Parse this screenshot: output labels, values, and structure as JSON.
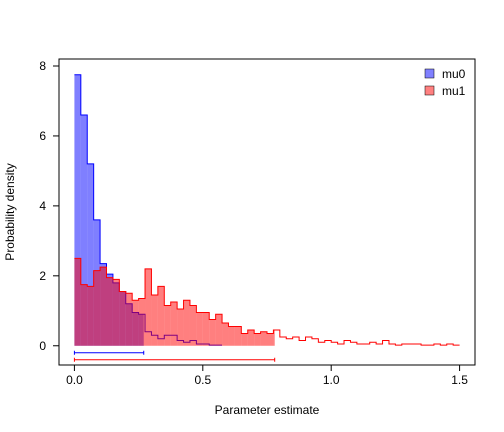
{
  "chart_data": {
    "type": "area",
    "title": "",
    "xlabel": "Parameter estimate",
    "ylabel": "Probability density",
    "xlim": [
      -0.06,
      1.56
    ],
    "ylim": [
      -0.55,
      8.2
    ],
    "x_ticks": [
      0.0,
      0.5,
      1.0,
      1.5
    ],
    "x_tick_labels": [
      "0.0",
      "0.5",
      "1.0",
      "1.5"
    ],
    "y_ticks": [
      0,
      2,
      4,
      6,
      8
    ],
    "y_tick_labels": [
      "0",
      "2",
      "4",
      "6",
      "8"
    ],
    "legend_position": "top-right",
    "legend": [
      {
        "label": "mu0",
        "color": "#8080ff"
      },
      {
        "label": "mu1",
        "color": "#ff8080"
      }
    ],
    "series": [
      {
        "name": "mu0",
        "fill": "#0000ff",
        "fill_opacity": 0.5,
        "stroke": "#0000ff",
        "bin_width": 0.025,
        "x_start": 0.0,
        "densities": [
          7.75,
          6.6,
          5.2,
          3.6,
          2.35,
          2.05,
          1.8,
          1.55,
          1.2,
          0.95,
          0.9,
          0.4,
          0.3,
          0.2,
          0.3,
          0.3,
          0.15,
          0.1,
          0.15,
          0.05,
          0.05,
          0.02,
          0.02
        ],
        "shaded_until": 0.27
      },
      {
        "name": "mu1",
        "fill": "#ff0000",
        "fill_opacity": 0.5,
        "stroke": "#ff0000",
        "bin_width": 0.025,
        "x_start": 0.0,
        "densities": [
          2.5,
          1.75,
          1.7,
          2.15,
          2.25,
          1.95,
          1.9,
          1.55,
          1.5,
          1.3,
          1.35,
          2.2,
          1.45,
          1.7,
          1.15,
          1.25,
          1.05,
          1.3,
          1.15,
          0.95,
          0.95,
          0.75,
          0.9,
          0.65,
          0.55,
          0.55,
          0.35,
          0.45,
          0.35,
          0.4,
          0.35,
          0.45,
          0.25,
          0.2,
          0.25,
          0.15,
          0.25,
          0.2,
          0.1,
          0.15,
          0.1,
          0.05,
          0.15,
          0.1,
          0.05,
          0.05,
          0.1,
          0.05,
          0.15,
          0.05,
          0.02,
          0.05,
          0.05,
          0.05,
          0.02,
          0.02,
          0.05,
          0.02,
          0.05,
          0.02
        ],
        "shaded_until": 0.78
      }
    ],
    "intervals": [
      {
        "name": "mu0",
        "from": 0.0,
        "to": 0.27,
        "y": -0.2,
        "color": "#0000ff"
      },
      {
        "name": "mu1",
        "from": 0.0,
        "to": 0.78,
        "y": -0.4,
        "color": "#ff0000"
      }
    ]
  }
}
